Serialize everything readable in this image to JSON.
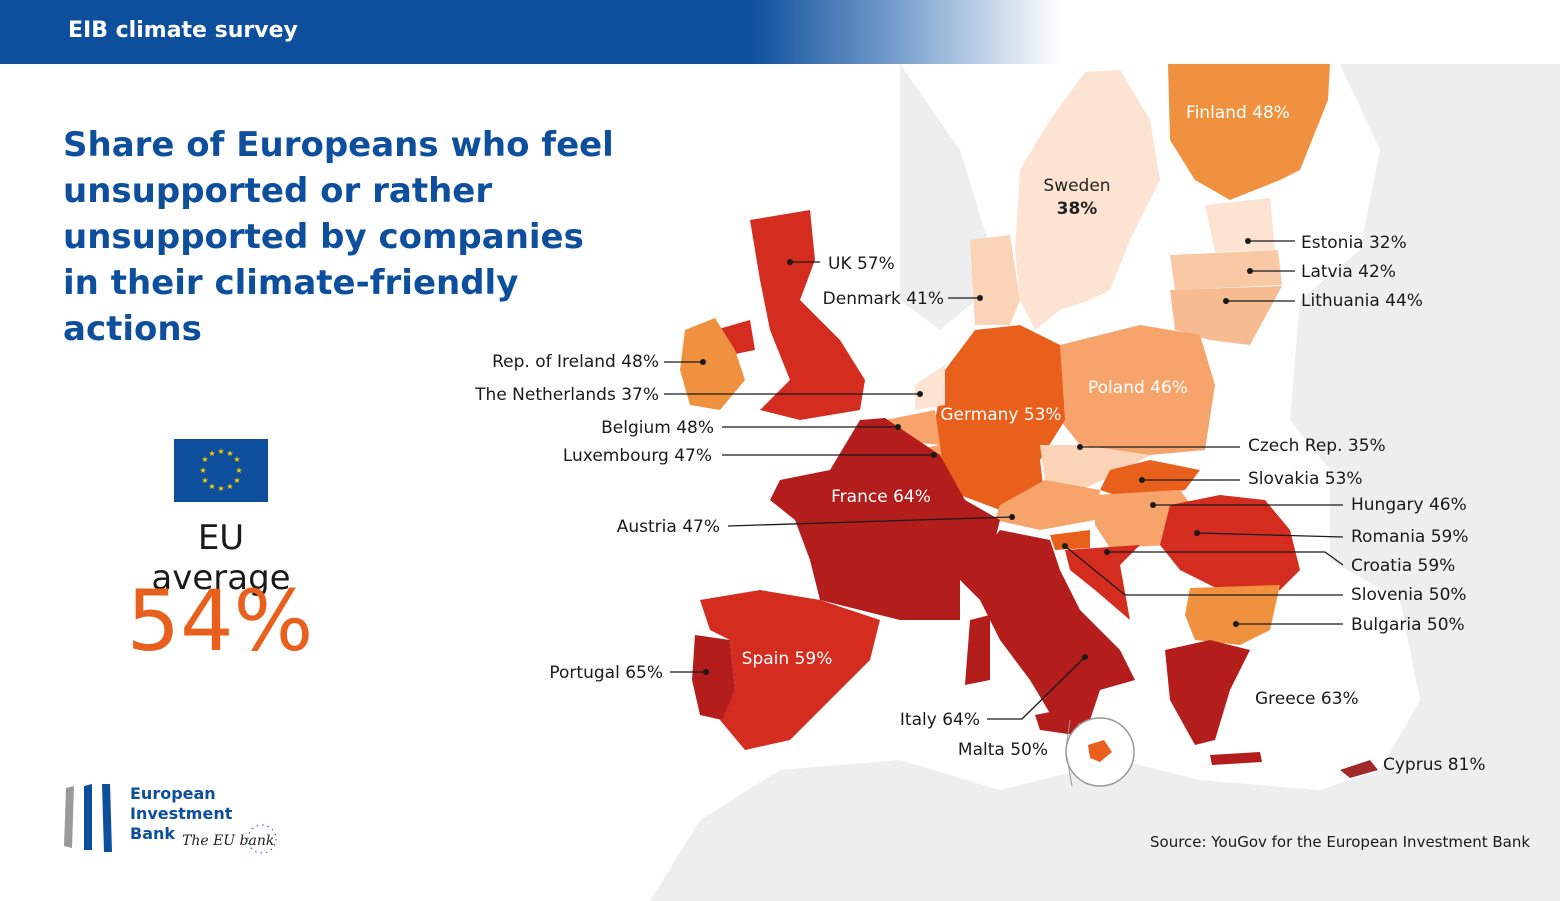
{
  "header": {
    "title": "EIB climate survey"
  },
  "headline": "Share of Europeans who feel unsupported or rather unsupported by companies in their climate-friendly actions",
  "eu_average": {
    "label": "EU average",
    "value": "54%"
  },
  "logo": {
    "line1": "European",
    "line2": "Investment",
    "line3": "Bank",
    "tagline": "The EU bank"
  },
  "source": "Source: YouGov for the European Investment Bank",
  "colors": {
    "brand_blue": "#0d4f9c",
    "accent_orange": "#e8601c"
  },
  "countries": [
    {
      "id": "finland",
      "label": "Finland 48%",
      "value": 48
    },
    {
      "id": "sweden",
      "label": "Sweden",
      "value": 38,
      "value_label": "38%"
    },
    {
      "id": "estonia",
      "label": "Estonia 32%",
      "value": 32
    },
    {
      "id": "latvia",
      "label": "Latvia 42%",
      "value": 42
    },
    {
      "id": "lithuania",
      "label": "Lithuania 44%",
      "value": 44
    },
    {
      "id": "uk",
      "label": "UK 57%",
      "value": 57
    },
    {
      "id": "denmark",
      "label": "Denmark 41%",
      "value": 41
    },
    {
      "id": "ireland",
      "label": "Rep. of Ireland 48%",
      "value": 48
    },
    {
      "id": "netherlands",
      "label": "The Netherlands 37%",
      "value": 37
    },
    {
      "id": "belgium",
      "label": "Belgium 48%",
      "value": 48
    },
    {
      "id": "luxembourg",
      "label": "Luxembourg 47%",
      "value": 47
    },
    {
      "id": "germany",
      "label": "Germany 53%",
      "value": 53
    },
    {
      "id": "poland",
      "label": "Poland 46%",
      "value": 46
    },
    {
      "id": "czech",
      "label": "Czech Rep. 35%",
      "value": 35
    },
    {
      "id": "slovakia",
      "label": "Slovakia 53%",
      "value": 53
    },
    {
      "id": "hungary",
      "label": "Hungary 46%",
      "value": 46
    },
    {
      "id": "romania",
      "label": "Romania 59%",
      "value": 59
    },
    {
      "id": "croatia",
      "label": "Croatia 59%",
      "value": 59
    },
    {
      "id": "slovenia",
      "label": "Slovenia 50%",
      "value": 50
    },
    {
      "id": "bulgaria",
      "label": "Bulgaria 50%",
      "value": 50
    },
    {
      "id": "france",
      "label": "France 64%",
      "value": 64
    },
    {
      "id": "austria",
      "label": "Austria 47%",
      "value": 47
    },
    {
      "id": "spain",
      "label": "Spain 59%",
      "value": 59
    },
    {
      "id": "portugal",
      "label": "Portugal 65%",
      "value": 65
    },
    {
      "id": "italy",
      "label": "Italy 64%",
      "value": 64
    },
    {
      "id": "malta",
      "label": "Malta 50%",
      "value": 50
    },
    {
      "id": "greece",
      "label": "Greece 63%",
      "value": 63
    },
    {
      "id": "cyprus",
      "label": "Cyprus 81%",
      "value": 81
    }
  ]
}
